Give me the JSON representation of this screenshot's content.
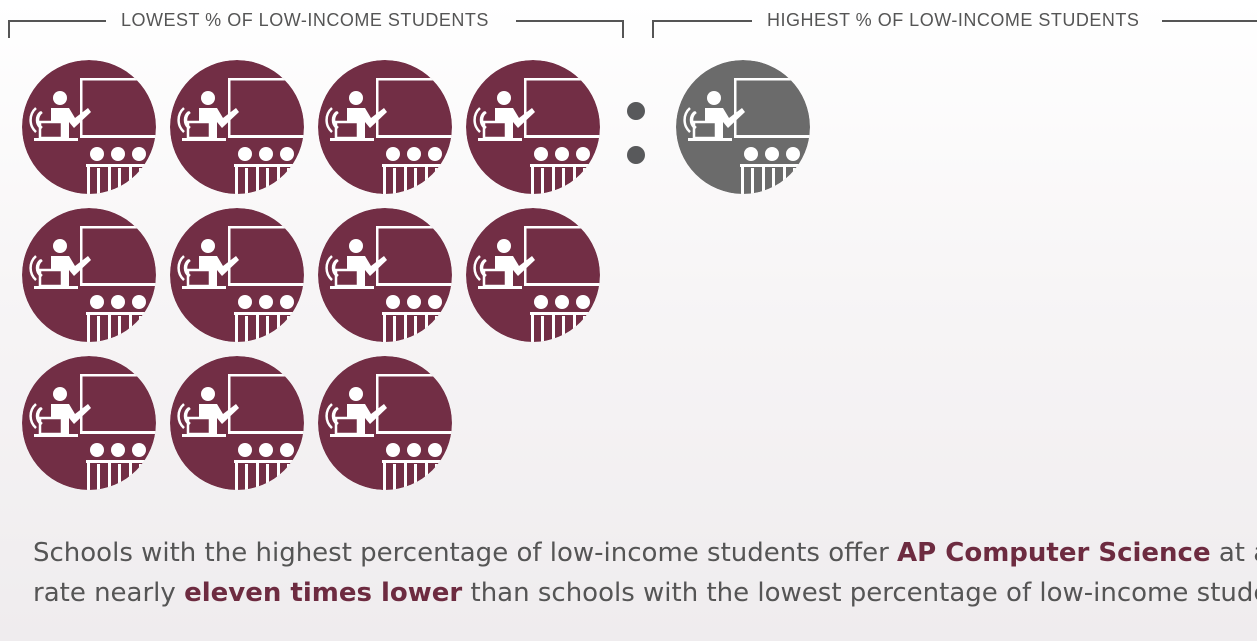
{
  "groups": {
    "lowest": {
      "label": "LOWEST % OF LOW-INCOME STUDENTS",
      "icon_count": 11,
      "icon_color": "#722e45"
    },
    "highest": {
      "label": "HIGHEST % OF LOW-INCOME STUDENTS",
      "icon_count": 1,
      "icon_color": "#6b6b6b"
    }
  },
  "ratio_symbol": ":",
  "icon_name": "teacher-presenting-to-class-icon",
  "caption": {
    "line1_part1": "Schools with the highest percentage of low-income students offer ",
    "line1_bold": "AP Computer Science",
    "line1_part2": " at a",
    "line2_part1": "rate nearly ",
    "line2_bold": "eleven times lower",
    "line2_part2": " than schools with the lowest percentage of low-income students."
  },
  "colors": {
    "accent": "#722e45",
    "neutral": "#6b6b6b",
    "text": "#555555"
  }
}
